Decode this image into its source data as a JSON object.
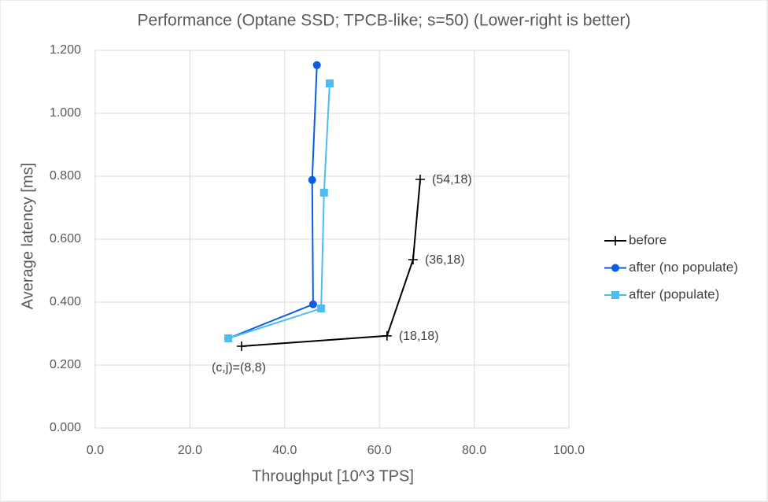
{
  "chart_data": {
    "type": "scatter-line",
    "title": "Performance (Optane SSD; TPCB-like; s=50) (Lower-right is better)",
    "x_label": "Throughput [10^3 TPS]",
    "y_label": "Average latency [ms]",
    "xlim": [
      0,
      100
    ],
    "ylim": [
      0,
      1.2
    ],
    "xticks": [
      {
        "value": 0,
        "label": "0.0"
      },
      {
        "value": 20,
        "label": "20.0"
      },
      {
        "value": 40,
        "label": "40.0"
      },
      {
        "value": 60,
        "label": "60.0"
      },
      {
        "value": 80,
        "label": "80.0"
      },
      {
        "value": 100,
        "label": "100.0"
      }
    ],
    "yticks": [
      {
        "value": 0,
        "label": "0.000"
      },
      {
        "value": 0.2,
        "label": "0.200"
      },
      {
        "value": 0.4,
        "label": "0.400"
      },
      {
        "value": 0.6,
        "label": "0.600"
      },
      {
        "value": 0.8,
        "label": "0.800"
      },
      {
        "value": 1.0,
        "label": "1.000"
      },
      {
        "value": 1.2,
        "label": "1.200"
      }
    ],
    "grid": true,
    "legend": "right",
    "series": [
      {
        "name": "before",
        "color": "#000000",
        "marker": "plus",
        "x": [
          30.9,
          61.6,
          67.1,
          68.6
        ],
        "y": [
          0.26,
          0.293,
          0.535,
          0.79
        ],
        "point_labels": [
          "(c,j)=(8,8)",
          "(18,18)",
          "(36,18)",
          "(54,18)"
        ]
      },
      {
        "name": "after (no populate)",
        "color": "#0a5ce6",
        "marker": "circle",
        "x": [
          28.1,
          46.0,
          45.8,
          46.8
        ],
        "y": [
          0.285,
          0.393,
          0.788,
          1.153
        ]
      },
      {
        "name": "after (populate)",
        "color": "#4dbdf0",
        "marker": "square",
        "x": [
          28.1,
          47.7,
          48.3,
          49.5
        ],
        "y": [
          0.285,
          0.38,
          0.748,
          1.095
        ]
      }
    ]
  }
}
